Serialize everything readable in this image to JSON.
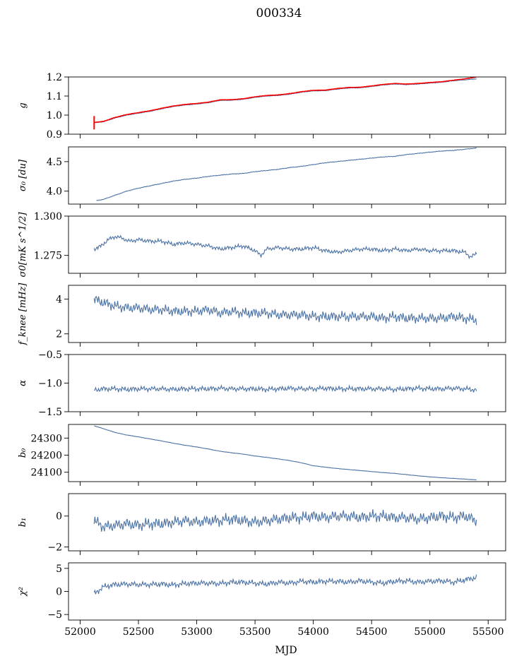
{
  "figure": {
    "title": "000334",
    "xlabel": "MJD"
  },
  "colors": {
    "series": "#4c72a4",
    "highlight": "#ff0000"
  },
  "chart_data": [
    {
      "type": "line",
      "ylabel": "g",
      "xlim": [
        51900,
        55650
      ],
      "ylim": [
        0.9,
        1.2
      ],
      "yticks": [
        0.9,
        1.0,
        1.1,
        1.2
      ],
      "ytick_labels": [
        "0.9",
        "1.0",
        "1.1",
        "1.2"
      ],
      "grid": false,
      "series": [
        {
          "color": "#4c72a4",
          "x": [
            52120,
            52200,
            52300,
            52400,
            52500,
            52600,
            52700,
            52800,
            52900,
            53000,
            53100,
            53200,
            53300,
            53400,
            53500,
            53600,
            53700,
            53800,
            53900,
            54000,
            54100,
            54200,
            54300,
            54400,
            54500,
            54600,
            54700,
            54800,
            54900,
            55000,
            55100,
            55200,
            55300,
            55400
          ],
          "y": [
            0.96,
            0.965,
            0.985,
            1.0,
            1.01,
            1.02,
            1.033,
            1.045,
            1.053,
            1.058,
            1.065,
            1.077,
            1.078,
            1.083,
            1.093,
            1.1,
            1.103,
            1.11,
            1.12,
            1.127,
            1.128,
            1.136,
            1.142,
            1.143,
            1.15,
            1.158,
            1.163,
            1.16,
            1.163,
            1.168,
            1.172,
            1.18,
            1.185,
            1.19
          ]
        },
        {
          "color": "#ff0000",
          "x": [
            52120,
            52200,
            52300,
            52400,
            52500,
            52600,
            52700,
            52800,
            52900,
            53000,
            53100,
            53200,
            53300,
            53400,
            53500,
            53600,
            53700,
            53800,
            53900,
            54000,
            54100,
            54200,
            54300,
            54400,
            54500,
            54600,
            54700,
            54800,
            54900,
            55000,
            55100,
            55200,
            55300,
            55400
          ],
          "y": [
            0.962,
            0.967,
            0.988,
            1.003,
            1.013,
            1.023,
            1.036,
            1.048,
            1.056,
            1.061,
            1.068,
            1.08,
            1.081,
            1.086,
            1.096,
            1.103,
            1.106,
            1.113,
            1.123,
            1.13,
            1.131,
            1.139,
            1.145,
            1.146,
            1.153,
            1.161,
            1.166,
            1.163,
            1.166,
            1.171,
            1.175,
            1.183,
            1.19,
            1.2
          ]
        }
      ]
    },
    {
      "type": "line",
      "ylabel": "σ₀ [du]",
      "xlim": [
        51900,
        55650
      ],
      "ylim": [
        3.78,
        4.75
      ],
      "yticks": [
        4.0,
        4.5
      ],
      "ytick_labels": [
        "4.0",
        "4.5"
      ],
      "grid": false,
      "series": [
        {
          "color": "#4c72a4",
          "x": [
            52140,
            52200,
            52300,
            52400,
            52500,
            52600,
            52700,
            52800,
            52900,
            53000,
            53100,
            53200,
            53300,
            53400,
            53500,
            53600,
            53700,
            53800,
            53900,
            54000,
            54100,
            54200,
            54300,
            54400,
            54500,
            54600,
            54700,
            54800,
            54900,
            55000,
            55100,
            55200,
            55300,
            55400
          ],
          "y": [
            3.84,
            3.86,
            3.93,
            4.0,
            4.05,
            4.09,
            4.13,
            4.17,
            4.2,
            4.22,
            4.25,
            4.27,
            4.29,
            4.3,
            4.33,
            4.35,
            4.37,
            4.4,
            4.42,
            4.45,
            4.48,
            4.5,
            4.52,
            4.54,
            4.56,
            4.58,
            4.59,
            4.62,
            4.64,
            4.66,
            4.68,
            4.69,
            4.71,
            4.73
          ]
        }
      ]
    },
    {
      "type": "line",
      "ylabel": "σ0[mK s^1/2]",
      "xlim": [
        51900,
        55650
      ],
      "ylim": [
        1.2636,
        1.3
      ],
      "yticks": [
        1.275,
        1.3
      ],
      "ytick_labels": [
        "1.275",
        "1.300"
      ],
      "grid": false,
      "series": [
        {
          "color": "#4c72a4",
          "x": [
            52120,
            52180,
            52240,
            52300,
            52360,
            52420,
            52500,
            52600,
            52700,
            52800,
            52900,
            53000,
            53100,
            53200,
            53300,
            53400,
            53500,
            53550,
            53600,
            53700,
            53800,
            53900,
            54000,
            54100,
            54200,
            54300,
            54400,
            54500,
            54600,
            54700,
            54800,
            54900,
            55000,
            55100,
            55200,
            55300,
            55350,
            55400
          ],
          "y": [
            1.279,
            1.281,
            1.285,
            1.287,
            1.286,
            1.284,
            1.285,
            1.284,
            1.284,
            1.282,
            1.283,
            1.282,
            1.281,
            1.279,
            1.28,
            1.281,
            1.278,
            1.275,
            1.279,
            1.28,
            1.279,
            1.279,
            1.28,
            1.278,
            1.277,
            1.278,
            1.279,
            1.279,
            1.278,
            1.279,
            1.278,
            1.279,
            1.278,
            1.278,
            1.278,
            1.277,
            1.274,
            1.276
          ]
        }
      ]
    },
    {
      "type": "line",
      "ylabel": "f_knee [mHz]",
      "xlim": [
        51900,
        55650
      ],
      "ylim": [
        1.5,
        4.8
      ],
      "yticks": [
        2,
        4
      ],
      "ytick_labels": [
        "2",
        "4"
      ],
      "grid": false,
      "series": [
        {
          "color": "#4c72a4",
          "x": [
            52120,
            52200,
            52300,
            52400,
            52500,
            52600,
            52700,
            52800,
            52900,
            53000,
            53100,
            53200,
            53300,
            53400,
            53500,
            53600,
            53700,
            53800,
            53900,
            54000,
            54100,
            54200,
            54300,
            54400,
            54500,
            54600,
            54700,
            54800,
            54900,
            55000,
            55100,
            55200,
            55300,
            55400
          ],
          "y": [
            4.0,
            3.8,
            3.6,
            3.5,
            3.5,
            3.4,
            3.4,
            3.3,
            3.3,
            3.3,
            3.4,
            3.2,
            3.3,
            3.2,
            3.2,
            3.2,
            3.1,
            3.1,
            3.1,
            3.0,
            3.0,
            3.0,
            3.0,
            3.0,
            3.0,
            2.9,
            3.0,
            2.9,
            2.9,
            2.9,
            2.9,
            3.0,
            2.9,
            2.8
          ]
        }
      ]
    },
    {
      "type": "line",
      "ylabel": "α",
      "xlim": [
        51900,
        55650
      ],
      "ylim": [
        -1.5,
        -0.5
      ],
      "yticks": [
        -1.5,
        -1.0,
        -0.5
      ],
      "ytick_labels": [
        "−1.5",
        "−1.0",
        "−0.5"
      ],
      "grid": false,
      "series": [
        {
          "color": "#4c72a4",
          "x": [
            52120,
            52200,
            52300,
            52400,
            52500,
            52600,
            52700,
            52800,
            52900,
            53000,
            53100,
            53200,
            53300,
            53400,
            53500,
            53600,
            53700,
            53800,
            53900,
            54000,
            54100,
            54200,
            54300,
            54400,
            54500,
            54600,
            54700,
            54800,
            54900,
            55000,
            55100,
            55200,
            55300,
            55400
          ],
          "y": [
            -1.12,
            -1.1,
            -1.1,
            -1.11,
            -1.1,
            -1.1,
            -1.1,
            -1.11,
            -1.1,
            -1.1,
            -1.1,
            -1.09,
            -1.1,
            -1.1,
            -1.1,
            -1.11,
            -1.1,
            -1.09,
            -1.1,
            -1.1,
            -1.09,
            -1.1,
            -1.1,
            -1.1,
            -1.1,
            -1.1,
            -1.11,
            -1.1,
            -1.09,
            -1.1,
            -1.1,
            -1.09,
            -1.1,
            -1.12
          ]
        }
      ]
    },
    {
      "type": "line",
      "ylabel": "b₀",
      "xlim": [
        51900,
        55650
      ],
      "ylim": [
        24045,
        24380
      ],
      "yticks": [
        24100,
        24200,
        24300
      ],
      "ytick_labels": [
        "24100",
        "24200",
        "24300"
      ],
      "grid": false,
      "series": [
        {
          "color": "#4c72a4",
          "x": [
            52120,
            52200,
            52300,
            52400,
            52500,
            52600,
            52700,
            52800,
            52900,
            53000,
            53100,
            53200,
            53300,
            53400,
            53500,
            53600,
            53700,
            53800,
            53900,
            54000,
            54100,
            54200,
            54300,
            54400,
            54500,
            54600,
            54700,
            54800,
            54900,
            55000,
            55100,
            55200,
            55300,
            55400
          ],
          "y": [
            24372,
            24355,
            24333,
            24318,
            24307,
            24295,
            24283,
            24270,
            24258,
            24248,
            24236,
            24223,
            24214,
            24206,
            24195,
            24187,
            24178,
            24168,
            24155,
            24138,
            24130,
            24122,
            24116,
            24110,
            24104,
            24098,
            24093,
            24086,
            24079,
            24073,
            24068,
            24064,
            24060,
            24055
          ]
        }
      ]
    },
    {
      "type": "line",
      "ylabel": "b₁",
      "xlim": [
        51900,
        55650
      ],
      "ylim": [
        -2.25,
        1.45
      ],
      "yticks": [
        -2,
        0
      ],
      "ytick_labels": [
        "−2",
        "0"
      ],
      "grid": false,
      "series": [
        {
          "color": "#4c72a4",
          "x": [
            52120,
            52200,
            52300,
            52400,
            52500,
            52600,
            52700,
            52800,
            52900,
            53000,
            53100,
            53200,
            53300,
            53400,
            53500,
            53600,
            53700,
            53800,
            53900,
            54000,
            54100,
            54200,
            54300,
            54400,
            54500,
            54600,
            54700,
            54800,
            54900,
            55000,
            55100,
            55200,
            55300,
            55400
          ],
          "y": [
            -0.3,
            -0.7,
            -0.6,
            -0.5,
            -0.6,
            -0.5,
            -0.5,
            -0.4,
            -0.3,
            -0.4,
            -0.3,
            -0.3,
            -0.2,
            -0.3,
            -0.4,
            -0.3,
            -0.2,
            -0.1,
            -0.1,
            0.0,
            -0.1,
            0.0,
            0.0,
            -0.1,
            0.0,
            0.0,
            -0.1,
            -0.1,
            -0.2,
            -0.1,
            0.0,
            -0.1,
            0.0,
            -0.3
          ]
        }
      ]
    },
    {
      "type": "line",
      "ylabel": "χ²",
      "xlim": [
        51900,
        55650
      ],
      "ylim": [
        -6.2,
        6.2
      ],
      "yticks": [
        -5,
        0,
        5
      ],
      "ytick_labels": [
        "−5",
        "0",
        "5"
      ],
      "grid": false,
      "series": [
        {
          "color": "#4c72a4",
          "x": [
            52120,
            52200,
            52300,
            52400,
            52500,
            52600,
            52700,
            52800,
            52900,
            53000,
            53100,
            53200,
            53300,
            53400,
            53500,
            53600,
            53700,
            53800,
            53900,
            54000,
            54100,
            54200,
            54300,
            54400,
            54500,
            54600,
            54700,
            54800,
            54900,
            55000,
            55100,
            55200,
            55300,
            55400
          ],
          "y": [
            -0.5,
            1.0,
            1.5,
            1.6,
            1.5,
            1.5,
            1.6,
            1.4,
            1.7,
            1.8,
            1.8,
            1.7,
            2.0,
            2.0,
            1.8,
            1.6,
            2.0,
            1.8,
            2.2,
            2.0,
            2.2,
            2.2,
            2.0,
            2.3,
            2.0,
            1.8,
            2.2,
            2.3,
            2.0,
            2.2,
            2.3,
            2.0,
            2.5,
            3.0
          ]
        }
      ]
    }
  ],
  "x_axis": {
    "ticks": [
      52000,
      52500,
      53000,
      53500,
      54000,
      54500,
      55000,
      55500
    ],
    "tick_labels": [
      "52000",
      "52500",
      "53000",
      "53500",
      "54000",
      "54500",
      "55000",
      "55500"
    ]
  }
}
